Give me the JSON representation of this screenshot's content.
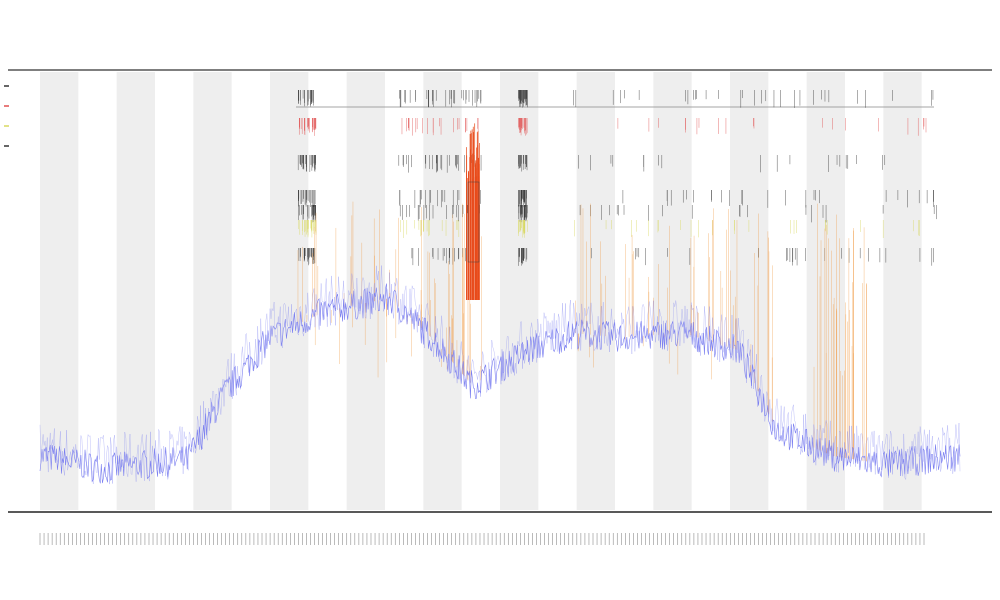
{
  "chart_data": {
    "type": "line",
    "title": "",
    "subtitle_lines": [
      "",
      ""
    ],
    "xlabel": "",
    "ylabel": "",
    "legend_position": "top-left",
    "grid": false,
    "alternating_column_bands": true,
    "band_count": 24,
    "colors": {
      "main_series": "#7b7ff0",
      "spike_series": "#f0a050",
      "strong_spike": "#e84a1a",
      "marker_dark": "#333333",
      "marker_red": "#e05050",
      "marker_yellow": "#d8d860",
      "band": "#eeeeee",
      "axis": "#222222"
    },
    "series": [
      {
        "name": "",
        "x_range": [
          0,
          1
        ],
        "values_profile": [
          [
            0.0,
            0.06
          ],
          [
            0.07,
            0.03
          ],
          [
            0.16,
            0.05
          ],
          [
            0.2,
            0.2
          ],
          [
            0.25,
            0.33
          ],
          [
            0.31,
            0.39
          ],
          [
            0.38,
            0.42
          ],
          [
            0.43,
            0.32
          ],
          [
            0.47,
            0.22
          ],
          [
            0.53,
            0.3
          ],
          [
            0.58,
            0.34
          ],
          [
            0.63,
            0.33
          ],
          [
            0.7,
            0.34
          ],
          [
            0.76,
            0.3
          ],
          [
            0.8,
            0.12
          ],
          [
            0.86,
            0.06
          ],
          [
            0.92,
            0.04
          ],
          [
            1.0,
            0.06
          ]
        ]
      }
    ],
    "marker_rows": [
      "dark",
      "red",
      "dark",
      "dark",
      "dark",
      "yellow",
      "dark"
    ],
    "legend_entries": [
      "",
      "",
      "",
      ""
    ],
    "x_tick_count": 220
  }
}
